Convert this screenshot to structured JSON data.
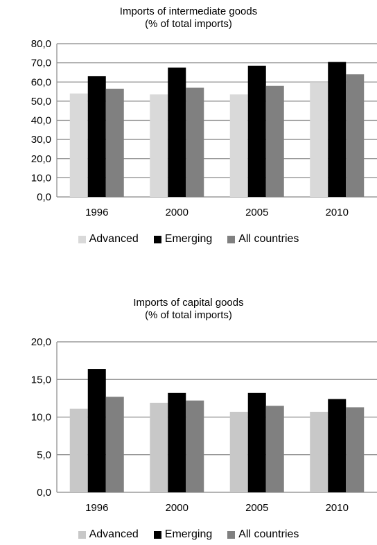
{
  "chart_data": [
    {
      "type": "bar",
      "title": "Imports of intermediate goods",
      "subtitle": "(% of total imports)",
      "categories": [
        "1996",
        "2000",
        "2005",
        "2010"
      ],
      "series": [
        {
          "name": "Advanced",
          "color": "#d9d9d9",
          "values": [
            54,
            53.5,
            53.5,
            60
          ]
        },
        {
          "name": "Emerging",
          "color": "#000000",
          "values": [
            63,
            67.5,
            68.5,
            70.5
          ]
        },
        {
          "name": "All countries",
          "color": "#808080",
          "values": [
            56.5,
            57,
            58,
            64
          ]
        }
      ],
      "ylim": [
        0,
        80
      ],
      "yticks": [
        "0,0",
        "10,0",
        "20,0",
        "30,0",
        "40,0",
        "50,0",
        "60,0",
        "70,0",
        "80,0"
      ],
      "grid": true,
      "legend": "bottom"
    },
    {
      "type": "bar",
      "title": "Imports of capital goods",
      "subtitle": "(% of total imports)",
      "categories": [
        "1996",
        "2000",
        "2005",
        "2010"
      ],
      "series": [
        {
          "name": "Advanced",
          "color": "#c8c8c8",
          "values": [
            11.1,
            11.9,
            10.7,
            10.7
          ]
        },
        {
          "name": "Emerging",
          "color": "#000000",
          "values": [
            16.4,
            13.2,
            13.2,
            12.4
          ]
        },
        {
          "name": "All countries",
          "color": "#808080",
          "values": [
            12.7,
            12.2,
            11.5,
            11.3
          ]
        }
      ],
      "ylim": [
        0,
        20
      ],
      "yticks": [
        "0,0",
        "5,0",
        "10,0",
        "15,0",
        "20,0"
      ],
      "grid": true,
      "legend": "bottom"
    }
  ]
}
